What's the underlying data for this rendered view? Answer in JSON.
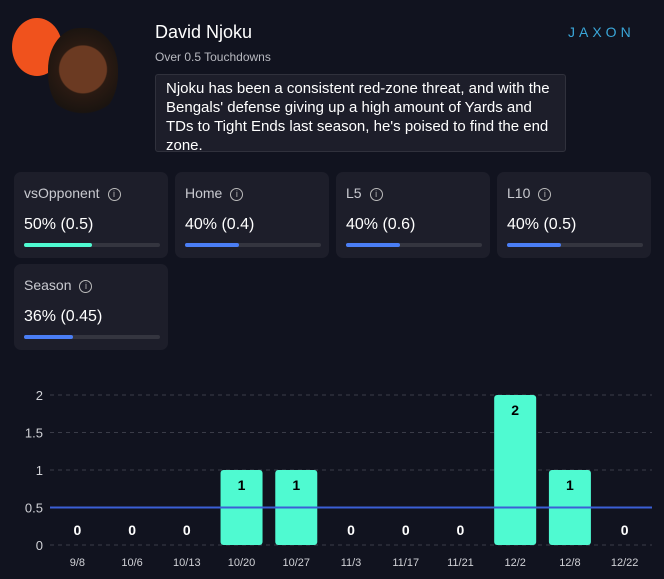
{
  "header": {
    "player_name": "David Njoku",
    "prop": "Over 0.5 Touchdowns",
    "analysis": "Njoku has been a consistent red-zone threat, and with the Bengals' defense giving up a high amount of Yards and TDs to Tight Ends last season, he's poised to find the end zone.",
    "brand": "JAXON",
    "team_logo_icon": "browns-helmet-icon"
  },
  "colors": {
    "accent": "#4ffad1",
    "blue": "#4a7ef5",
    "line": "#3b5fd6"
  },
  "stats": [
    {
      "label": "vsOpponent",
      "value": "50% (0.5)",
      "percent": 50,
      "color": "#4ffad1"
    },
    {
      "label": "Home",
      "value": "40% (0.4)",
      "percent": 40,
      "color": "#4a7ef5"
    },
    {
      "label": "L5",
      "value": "40% (0.6)",
      "percent": 40,
      "color": "#4a7ef5"
    },
    {
      "label": "L10",
      "value": "40% (0.5)",
      "percent": 40,
      "color": "#4a7ef5"
    },
    {
      "label": "Season",
      "value": "36% (0.45)",
      "percent": 36,
      "color": "#4a7ef5"
    }
  ],
  "chart_data": {
    "type": "bar",
    "categories": [
      "9/8",
      "10/6",
      "10/13",
      "10/20",
      "10/27",
      "11/3",
      "11/17",
      "11/21",
      "12/2",
      "12/8",
      "12/22"
    ],
    "values": [
      0,
      0,
      0,
      1,
      1,
      0,
      0,
      0,
      2,
      1,
      0
    ],
    "yticks": [
      "0",
      "0.5",
      "1",
      "1.5",
      "2"
    ],
    "ylim": [
      0,
      2
    ],
    "threshold": 0.5,
    "grid": true
  }
}
